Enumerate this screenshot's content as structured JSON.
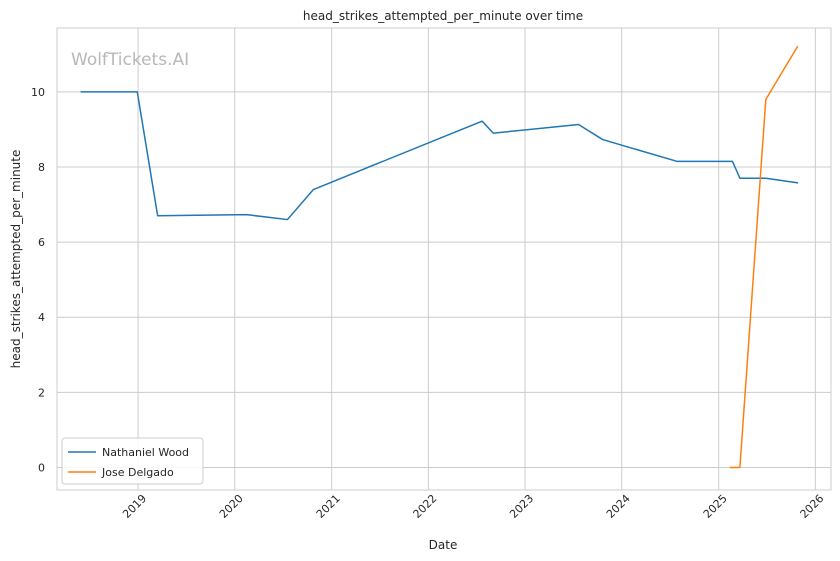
{
  "chart_data": {
    "type": "line",
    "title": "head_strikes_attempted_per_minute over time",
    "xlabel": "Date",
    "ylabel": "head_strikes_attempted_per_minute",
    "watermark": "WolfTickets.AI",
    "x_ticks": [
      "2019",
      "2020",
      "2021",
      "2022",
      "2023",
      "2024",
      "2025",
      "2026"
    ],
    "y_ticks": [
      "0",
      "2",
      "4",
      "6",
      "8",
      "10"
    ],
    "xlim": [
      "2018-03-01",
      "2026-03-01"
    ],
    "ylim": [
      -0.6,
      11.7
    ],
    "grid": true,
    "legend_position": "lower-left",
    "series": [
      {
        "name": "Nathaniel Wood",
        "color": "#1f77b4",
        "points": [
          {
            "x": "2018-06-01",
            "y": 10.0
          },
          {
            "x": "2018-12-29",
            "y": 10.0
          },
          {
            "x": "2019-03-16",
            "y": 6.7
          },
          {
            "x": "2020-02-15",
            "y": 6.73
          },
          {
            "x": "2020-07-18",
            "y": 6.6
          },
          {
            "x": "2020-10-24",
            "y": 7.4
          },
          {
            "x": "2022-07-23",
            "y": 9.22
          },
          {
            "x": "2022-09-03",
            "y": 8.9
          },
          {
            "x": "2023-07-22",
            "y": 9.13
          },
          {
            "x": "2023-10-21",
            "y": 8.73
          },
          {
            "x": "2024-07-27",
            "y": 8.15
          },
          {
            "x": "2025-02-22",
            "y": 8.15
          },
          {
            "x": "2025-03-22",
            "y": 7.7
          },
          {
            "x": "2025-06-28",
            "y": 7.7
          },
          {
            "x": "2025-10-25",
            "y": 7.58
          }
        ]
      },
      {
        "name": "Jose Delgado",
        "color": "#ff7f0e",
        "points": [
          {
            "x": "2025-02-15",
            "y": 0.0
          },
          {
            "x": "2025-03-22",
            "y": 0.0
          },
          {
            "x": "2025-06-28",
            "y": 9.8
          },
          {
            "x": "2025-10-25",
            "y": 11.2
          }
        ]
      }
    ]
  }
}
